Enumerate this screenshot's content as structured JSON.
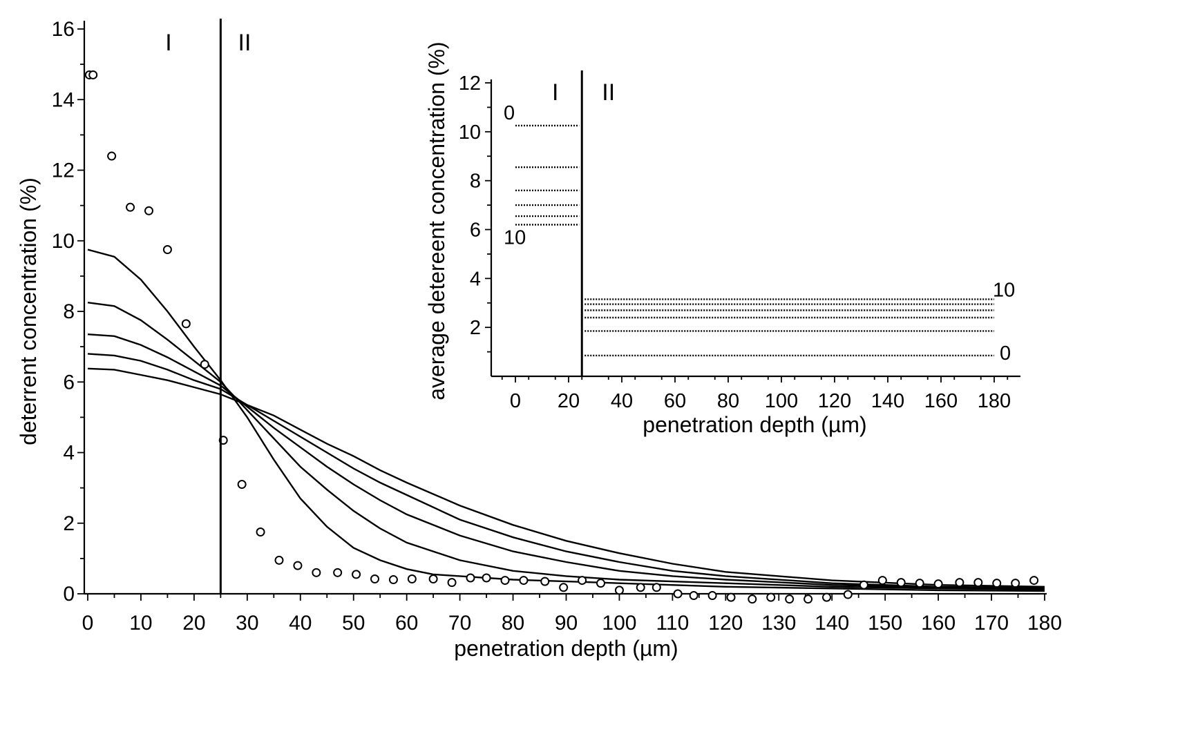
{
  "chart_data": [
    {
      "type": "line",
      "xlabel": "penetration depth (µm)",
      "ylabel": "deterrent concentration  (%)",
      "xlim": [
        0,
        180
      ],
      "ylim": [
        0,
        16
      ],
      "x_ticks": [
        "0",
        "10",
        "20",
        "30",
        "40",
        "50",
        "60",
        "70",
        "80",
        "90",
        "100",
        "110",
        "120",
        "130",
        "140",
        "150",
        "160",
        "170",
        "180"
      ],
      "y_ticks": [
        "0",
        "2",
        "4",
        "6",
        "8",
        "10",
        "12",
        "14",
        "16"
      ],
      "boundary_x": 25,
      "regions": [
        "I",
        "II"
      ],
      "series": [
        {
          "values": [
            [
              0,
              9.75
            ],
            [
              5,
              9.55
            ],
            [
              10,
              8.9
            ],
            [
              15,
              8.0
            ],
            [
              20,
              7.0
            ],
            [
              25,
              6.05
            ],
            [
              30,
              5.0
            ],
            [
              35,
              3.8
            ],
            [
              40,
              2.7
            ],
            [
              45,
              1.9
            ],
            [
              50,
              1.3
            ],
            [
              55,
              0.95
            ],
            [
              60,
              0.7
            ],
            [
              65,
              0.55
            ],
            [
              70,
              0.5
            ],
            [
              80,
              0.4
            ],
            [
              90,
              0.35
            ],
            [
              100,
              0.3
            ],
            [
              120,
              0.2
            ],
            [
              140,
              0.15
            ],
            [
              160,
              0.1
            ],
            [
              180,
              0.08
            ]
          ]
        },
        {
          "values": [
            [
              0,
              8.25
            ],
            [
              5,
              8.15
            ],
            [
              10,
              7.75
            ],
            [
              15,
              7.2
            ],
            [
              20,
              6.6
            ],
            [
              25,
              6.0
            ],
            [
              30,
              5.2
            ],
            [
              35,
              4.4
            ],
            [
              40,
              3.6
            ],
            [
              45,
              2.95
            ],
            [
              50,
              2.35
            ],
            [
              55,
              1.85
            ],
            [
              60,
              1.45
            ],
            [
              70,
              0.95
            ],
            [
              80,
              0.65
            ],
            [
              90,
              0.5
            ],
            [
              100,
              0.4
            ],
            [
              120,
              0.3
            ],
            [
              140,
              0.2
            ],
            [
              160,
              0.15
            ],
            [
              180,
              0.12
            ]
          ]
        },
        {
          "values": [
            [
              0,
              7.35
            ],
            [
              5,
              7.3
            ],
            [
              10,
              7.05
            ],
            [
              15,
              6.7
            ],
            [
              20,
              6.3
            ],
            [
              25,
              5.9
            ],
            [
              30,
              5.3
            ],
            [
              35,
              4.7
            ],
            [
              40,
              4.15
            ],
            [
              45,
              3.6
            ],
            [
              50,
              3.1
            ],
            [
              55,
              2.65
            ],
            [
              60,
              2.25
            ],
            [
              70,
              1.65
            ],
            [
              80,
              1.2
            ],
            [
              90,
              0.9
            ],
            [
              100,
              0.65
            ],
            [
              110,
              0.5
            ],
            [
              120,
              0.4
            ],
            [
              140,
              0.25
            ],
            [
              160,
              0.18
            ],
            [
              180,
              0.15
            ]
          ]
        },
        {
          "values": [
            [
              0,
              6.8
            ],
            [
              5,
              6.75
            ],
            [
              10,
              6.6
            ],
            [
              15,
              6.35
            ],
            [
              20,
              6.05
            ],
            [
              25,
              5.8
            ],
            [
              30,
              5.35
            ],
            [
              35,
              4.9
            ],
            [
              40,
              4.45
            ],
            [
              45,
              4.0
            ],
            [
              50,
              3.55
            ],
            [
              55,
              3.15
            ],
            [
              60,
              2.8
            ],
            [
              70,
              2.1
            ],
            [
              80,
              1.6
            ],
            [
              90,
              1.2
            ],
            [
              100,
              0.9
            ],
            [
              110,
              0.65
            ],
            [
              120,
              0.5
            ],
            [
              140,
              0.3
            ],
            [
              160,
              0.2
            ],
            [
              180,
              0.17
            ]
          ]
        },
        {
          "values": [
            [
              0,
              6.38
            ],
            [
              5,
              6.35
            ],
            [
              10,
              6.2
            ],
            [
              15,
              6.05
            ],
            [
              20,
              5.85
            ],
            [
              25,
              5.65
            ],
            [
              30,
              5.35
            ],
            [
              35,
              5.05
            ],
            [
              40,
              4.65
            ],
            [
              45,
              4.25
            ],
            [
              50,
              3.9
            ],
            [
              55,
              3.5
            ],
            [
              60,
              3.15
            ],
            [
              70,
              2.5
            ],
            [
              80,
              1.95
            ],
            [
              90,
              1.5
            ],
            [
              100,
              1.15
            ],
            [
              110,
              0.85
            ],
            [
              120,
              0.62
            ],
            [
              140,
              0.38
            ],
            [
              160,
              0.25
            ],
            [
              180,
              0.2
            ]
          ]
        }
      ],
      "points": [
        [
          0.3,
          14.7
        ],
        [
          1,
          14.7
        ],
        [
          4.5,
          12.4
        ],
        [
          8,
          10.95
        ],
        [
          11.5,
          10.85
        ],
        [
          15,
          9.75
        ],
        [
          18.5,
          7.65
        ],
        [
          22,
          6.5
        ],
        [
          25.5,
          4.35
        ],
        [
          29,
          3.1
        ],
        [
          32.5,
          1.75
        ],
        [
          36,
          0.95
        ],
        [
          39.5,
          0.8
        ],
        [
          43,
          0.6
        ],
        [
          47,
          0.6
        ],
        [
          50.5,
          0.55
        ],
        [
          54,
          0.42
        ],
        [
          57.5,
          0.4
        ],
        [
          61,
          0.42
        ],
        [
          65,
          0.42
        ],
        [
          68.5,
          0.32
        ],
        [
          72,
          0.45
        ],
        [
          75,
          0.45
        ],
        [
          78.5,
          0.38
        ],
        [
          82,
          0.38
        ],
        [
          86,
          0.35
        ],
        [
          89.5,
          0.18
        ],
        [
          93,
          0.38
        ],
        [
          96.5,
          0.3
        ],
        [
          100,
          0.1
        ],
        [
          104,
          0.18
        ],
        [
          107,
          0.18
        ],
        [
          111,
          0.0
        ],
        [
          114,
          -0.05
        ],
        [
          117.5,
          -0.05
        ],
        [
          121,
          -0.1
        ],
        [
          125,
          -0.15
        ],
        [
          128.5,
          -0.1
        ],
        [
          132,
          -0.15
        ],
        [
          135.5,
          -0.15
        ],
        [
          139,
          -0.1
        ],
        [
          143,
          -0.02
        ],
        [
          146,
          0.25
        ],
        [
          149.5,
          0.38
        ],
        [
          153,
          0.32
        ],
        [
          156.5,
          0.3
        ],
        [
          160,
          0.28
        ],
        [
          164,
          0.32
        ],
        [
          167.5,
          0.32
        ],
        [
          171,
          0.3
        ],
        [
          174.5,
          0.3
        ],
        [
          178,
          0.38
        ]
      ]
    },
    {
      "type": "line",
      "xlabel": "penetration depth (µm)",
      "ylabel": "average detereent concentration (%)",
      "xlim": [
        -9,
        190
      ],
      "ylim": [
        0,
        12.3
      ],
      "x_ticks": [
        "0",
        "20",
        "40",
        "60",
        "80",
        "100",
        "120",
        "140",
        "160",
        "180"
      ],
      "y_ticks": [
        "2",
        "4",
        "6",
        "8",
        "10",
        "12"
      ],
      "boundary_x": 25,
      "regions": [
        "I",
        "II"
      ],
      "region_I_levels": [
        10.25,
        8.55,
        7.6,
        7.0,
        6.55,
        6.2
      ],
      "region_II_levels": [
        0.85,
        1.85,
        2.4,
        2.7,
        2.95,
        3.15
      ],
      "region_I_from": 0,
      "region_I_to": 25,
      "region_II_from": 25,
      "region_II_to": 180,
      "annotations": [
        {
          "text": "0"
        },
        {
          "text": "10"
        },
        {
          "text": "10"
        },
        {
          "text": "0"
        }
      ]
    }
  ]
}
